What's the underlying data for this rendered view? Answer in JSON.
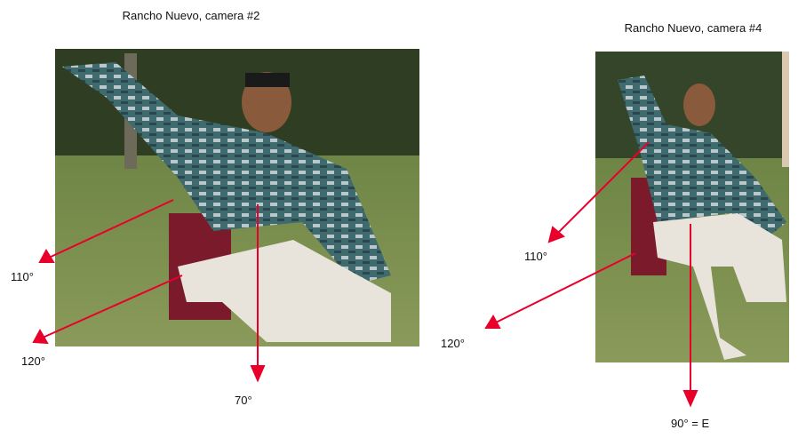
{
  "panels": [
    {
      "title": "Rancho Nuevo, camera #2",
      "labels": [
        "110°",
        "120°",
        "70°"
      ]
    },
    {
      "title": "Rancho Nuevo, camera #4",
      "labels": [
        "110°",
        "120°",
        "90° = E"
      ]
    }
  ]
}
